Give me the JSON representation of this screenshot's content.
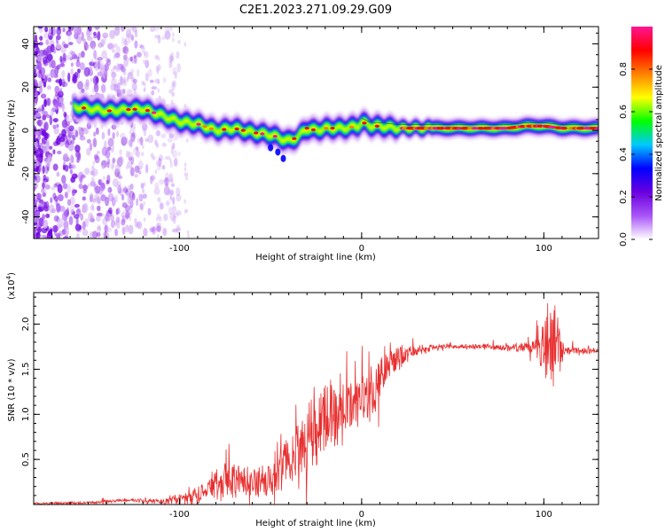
{
  "title": "C2E1.2023.271.09.29.G09",
  "chart_data": [
    {
      "type": "heatmap",
      "title": "C2E1.2023.271.09.29.G09",
      "xlabel": "Height of straight line (km)",
      "ylabel": "Frequency (Hz)",
      "xlim": [
        -180,
        130
      ],
      "ylim": [
        -50,
        48
      ],
      "x_ticks": [
        -100,
        0,
        100
      ],
      "y_ticks": [
        -40,
        -20,
        0,
        20,
        40
      ],
      "colorbar": {
        "label": "Normalized spectral amplitude",
        "range": [
          0,
          1
        ],
        "ticks": [
          0.0,
          0.2,
          0.4,
          0.6,
          0.8
        ],
        "colors": [
          "#ffffff",
          "#a855f7",
          "#6a00e0",
          "#0000ff",
          "#00c8ff",
          "#00ff00",
          "#ffff00",
          "#ff8000",
          "#ff0000",
          "#ff1493"
        ]
      },
      "ridge": {
        "x": [
          -158,
          -140,
          -120,
          -100,
          -90,
          -80,
          -70,
          -60,
          -50,
          -40,
          -35,
          -30,
          -25,
          -20,
          -10,
          -2,
          0,
          5,
          10,
          20,
          40,
          60,
          80,
          90,
          100,
          110,
          130
        ],
        "freq": [
          11,
          9,
          10,
          4,
          3,
          0,
          1,
          -1,
          -2,
          -5,
          -3,
          1,
          0,
          1,
          1,
          2,
          4,
          2,
          2,
          1,
          1,
          1,
          1,
          2,
          2,
          1,
          1
        ]
      }
    },
    {
      "type": "line",
      "xlabel": "Height of straight line (km)",
      "ylabel": "SNR (10 * v/v)",
      "y_scale_label": "(x10",
      "y_scale_exponent": "4",
      "xlim": [
        -180,
        130
      ],
      "ylim": [
        0,
        2.35
      ],
      "x_ticks": [
        -100,
        0,
        100
      ],
      "y_ticks": [
        0.5,
        1.0,
        1.5,
        2.0
      ],
      "y_tick_labels": [
        "0.5",
        "1.0",
        "1.5",
        "2.0"
      ],
      "color": "#e83030",
      "trend": {
        "x": [
          -180,
          -150,
          -130,
          -110,
          -100,
          -95,
          -90,
          -85,
          -80,
          -70,
          -60,
          -55,
          -50,
          -45,
          -40,
          -35,
          -30,
          -25,
          -20,
          -15,
          -10,
          -5,
          0,
          5,
          10,
          15,
          20,
          25,
          30,
          35,
          40,
          45,
          50,
          60,
          70,
          80,
          90,
          95,
          100,
          105,
          110,
          120,
          130
        ],
        "y": [
          0.01,
          0.02,
          0.05,
          0.03,
          0.06,
          0.08,
          0.12,
          0.17,
          0.22,
          0.26,
          0.26,
          0.28,
          0.3,
          0.4,
          0.5,
          0.62,
          0.75,
          0.85,
          0.95,
          1.0,
          1.1,
          1.15,
          1.18,
          1.25,
          1.4,
          1.55,
          1.62,
          1.67,
          1.7,
          1.73,
          1.74,
          1.75,
          1.75,
          1.75,
          1.75,
          1.74,
          1.74,
          1.73,
          1.72,
          1.75,
          1.72,
          1.71,
          1.7
        ]
      },
      "noise": {
        "x": [
          -180,
          -140,
          -110,
          -100,
          -90,
          -75,
          -60,
          -50,
          -40,
          -30,
          -20,
          -10,
          0,
          10,
          20,
          30,
          40,
          50,
          80,
          90,
          95,
          100,
          104,
          108,
          112,
          130
        ],
        "amp": [
          0.01,
          0.015,
          0.02,
          0.05,
          0.12,
          0.18,
          0.18,
          0.2,
          0.25,
          0.35,
          0.4,
          0.35,
          0.3,
          0.25,
          0.12,
          0.05,
          0.03,
          0.02,
          0.03,
          0.05,
          0.1,
          0.3,
          0.5,
          0.35,
          0.05,
          0.02
        ]
      }
    }
  ]
}
